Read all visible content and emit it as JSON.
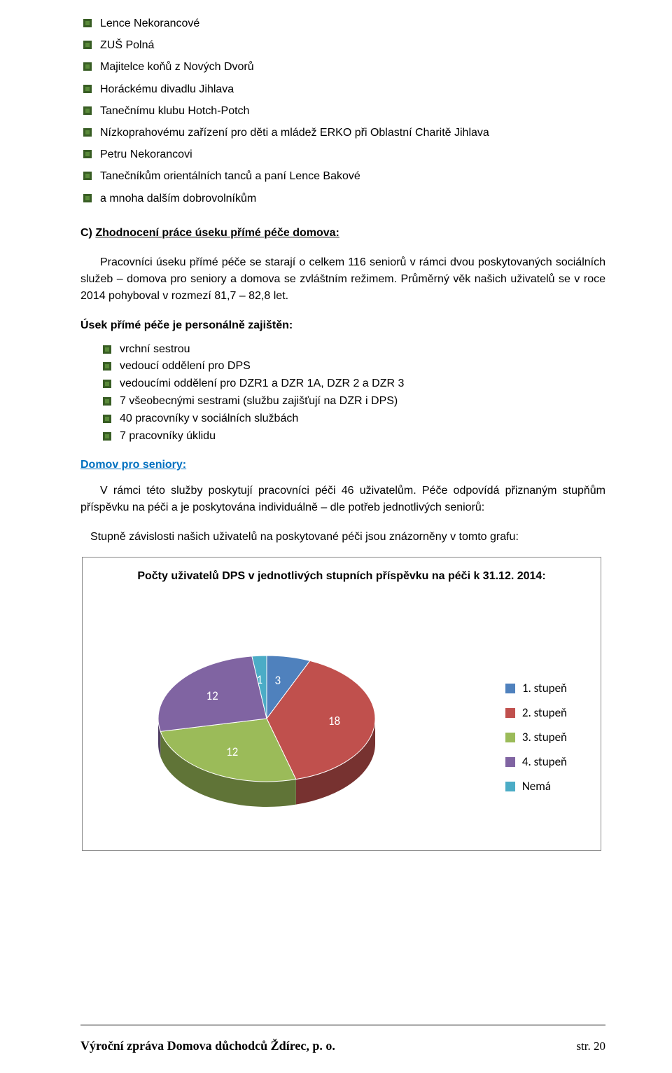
{
  "bullets_top": [
    "Lence Nekorancové",
    "ZUŠ Polná",
    "Majitelce koňů z Nových Dvorů",
    "Horáckému divadlu Jihlava",
    "Tanečnímu klubu Hotch-Potch",
    " Nízkoprahovému zařízení pro děti a mládež ERKO při Oblastní Charitě Jihlava",
    "Petru Nekorancovi",
    "Tanečníkům orientálních tanců a paní Lence Bakové",
    "a mnoha dalším dobrovolníkům"
  ],
  "section_c": {
    "label": "C) ",
    "title": "Zhodnocení práce úseku přímé péče domova:"
  },
  "paragraph1": "Pracovníci úseku přímé péče se starají o celkem 116 seniorů v rámci dvou poskytovaných sociálních služeb – domova pro seniory a domova se zvláštním režimem. Průměrný věk našich uživatelů se v roce 2014 pohyboval v rozmezí 81,7 – 82,8 let.",
  "usek_heading": "Úsek přímé péče je personálně zajištěn:",
  "sublist": [
    "vrchní sestrou",
    "vedoucí oddělení pro DPS",
    "vedoucími oddělení pro DZR1 a DZR 1A, DZR 2 a DZR 3",
    "7 všeobecnými sestrami (službu zajišťují na DZR i DPS)",
    "40 pracovníky v sociálních službách",
    "7 pracovníky úklidu"
  ],
  "link_heading": "Domov pro seniory:",
  "paragraph2": "V rámci této služby poskytují pracovníci péči 46 uživatelům. Péče odpovídá přiznaným stupňům příspěvku na péči a je poskytována individuálně – dle potřeb jednotlivých seniorů:",
  "graph_intro": "Stupně závislosti našich uživatelů na poskytované péči jsou znázorněny v tomto grafu:",
  "chart": {
    "type": "pie-3d",
    "title": "Počty uživatelů DPS v jednotlivých stupních příspěvku na péči k 31.12. 2014:",
    "categories": [
      "1. stupeň",
      "2. stupeň",
      "3. stupeň",
      "4. stupeň",
      "Nemá"
    ],
    "values": [
      3,
      18,
      12,
      12,
      1
    ],
    "colors": [
      "#4f81bd",
      "#c0504d",
      "#9bbb59",
      "#8064a2",
      "#4bacc6"
    ],
    "label_color": "#ffffff",
    "label_fontsize": 17,
    "background": "#ffffff",
    "border_color": "#888888"
  },
  "footer": {
    "left": "Výroční zpráva Domova důchodců Ždírec, p. o.",
    "right": "str. 20"
  }
}
